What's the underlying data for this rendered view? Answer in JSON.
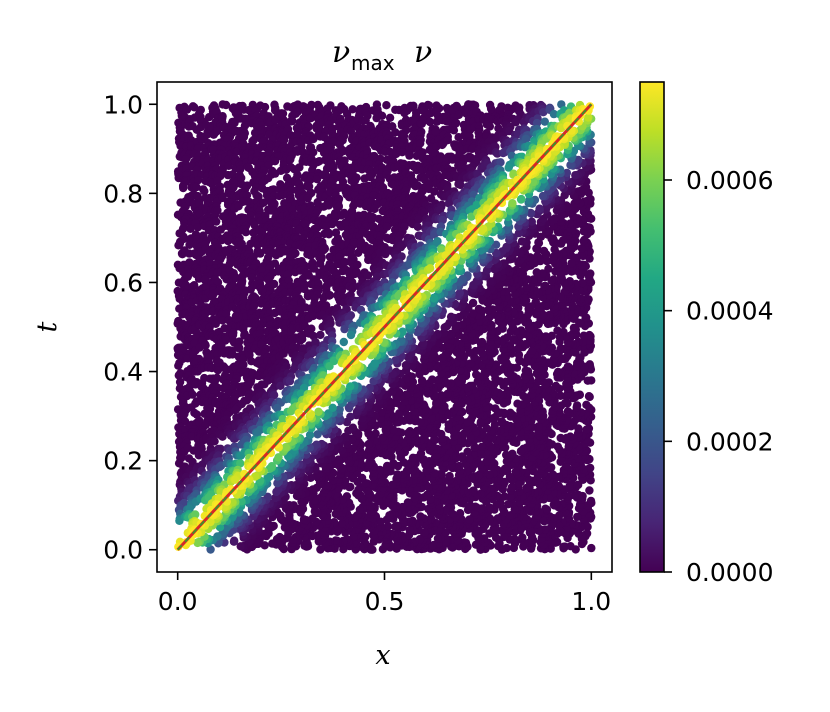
{
  "chart_data": {
    "type": "scatter",
    "title_main": "ν",
    "title_sub": "max",
    "title_tail": "ν",
    "xlabel": "x",
    "ylabel": "t",
    "xlim": [
      -0.05,
      1.05
    ],
    "ylim": [
      -0.05,
      1.05
    ],
    "x_ticks": [
      0.0,
      0.5,
      1.0
    ],
    "x_tick_labels": [
      "0.0",
      "0.5",
      "1.0"
    ],
    "y_ticks": [
      0.0,
      0.2,
      0.4,
      0.6,
      0.8,
      1.0
    ],
    "y_tick_labels": [
      "0.0",
      "0.2",
      "0.4",
      "0.6",
      "0.8",
      "1.0"
    ],
    "colorbar": {
      "colormap": "viridis",
      "range": [
        0.0,
        0.00075
      ],
      "ticks": [
        0.0,
        0.0002,
        0.0004,
        0.0006
      ],
      "tick_labels": [
        "0.0000",
        "0.0002",
        "0.0004",
        "0.0006"
      ]
    },
    "scatter_field": {
      "description_of_values": "color = nu_max * nu, peaked along the line t = x",
      "peak_value": 0.00075,
      "band_width": 0.07,
      "x_range": [
        0.0,
        1.0
      ],
      "t_range": [
        0.0,
        1.0
      ]
    },
    "line": {
      "x": [
        0.0,
        1.0
      ],
      "y": [
        0.0,
        1.0
      ],
      "colors": [
        "#d62728",
        "#2ca02c"
      ]
    },
    "grid": false,
    "legend": "none"
  }
}
